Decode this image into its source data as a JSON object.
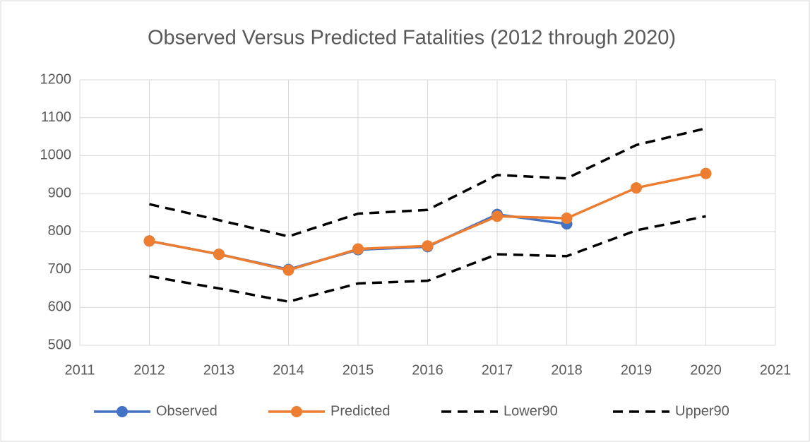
{
  "chart_data": {
    "type": "line",
    "title": "Observed Versus Predicted Fatalities (2012 through 2020)",
    "x": [
      2012,
      2013,
      2014,
      2015,
      2016,
      2017,
      2018,
      2019,
      2020
    ],
    "series": [
      {
        "name": "Observed",
        "color": "#4472c4",
        "dash": false,
        "marker": true,
        "values": [
          775,
          740,
          700,
          752,
          760,
          845,
          820,
          null,
          null
        ]
      },
      {
        "name": "Predicted",
        "color": "#ed7d31",
        "dash": false,
        "marker": true,
        "values": [
          775,
          740,
          698,
          754,
          762,
          840,
          835,
          915,
          953
        ]
      },
      {
        "name": "Lower90",
        "color": "#000000",
        "dash": true,
        "marker": false,
        "values": [
          682,
          650,
          615,
          663,
          670,
          740,
          735,
          803,
          840
        ]
      },
      {
        "name": "Upper90",
        "color": "#000000",
        "dash": true,
        "marker": false,
        "values": [
          872,
          830,
          787,
          847,
          857,
          949,
          940,
          1028,
          1072
        ]
      }
    ],
    "xlim": [
      2011,
      2021
    ],
    "xticks": [
      2011,
      2012,
      2013,
      2014,
      2015,
      2016,
      2017,
      2018,
      2019,
      2020,
      2021
    ],
    "ylim": [
      500,
      1200
    ],
    "yticks": [
      500,
      600,
      700,
      800,
      900,
      1000,
      1100,
      1200
    ],
    "grid": true,
    "legend": "bottom"
  }
}
